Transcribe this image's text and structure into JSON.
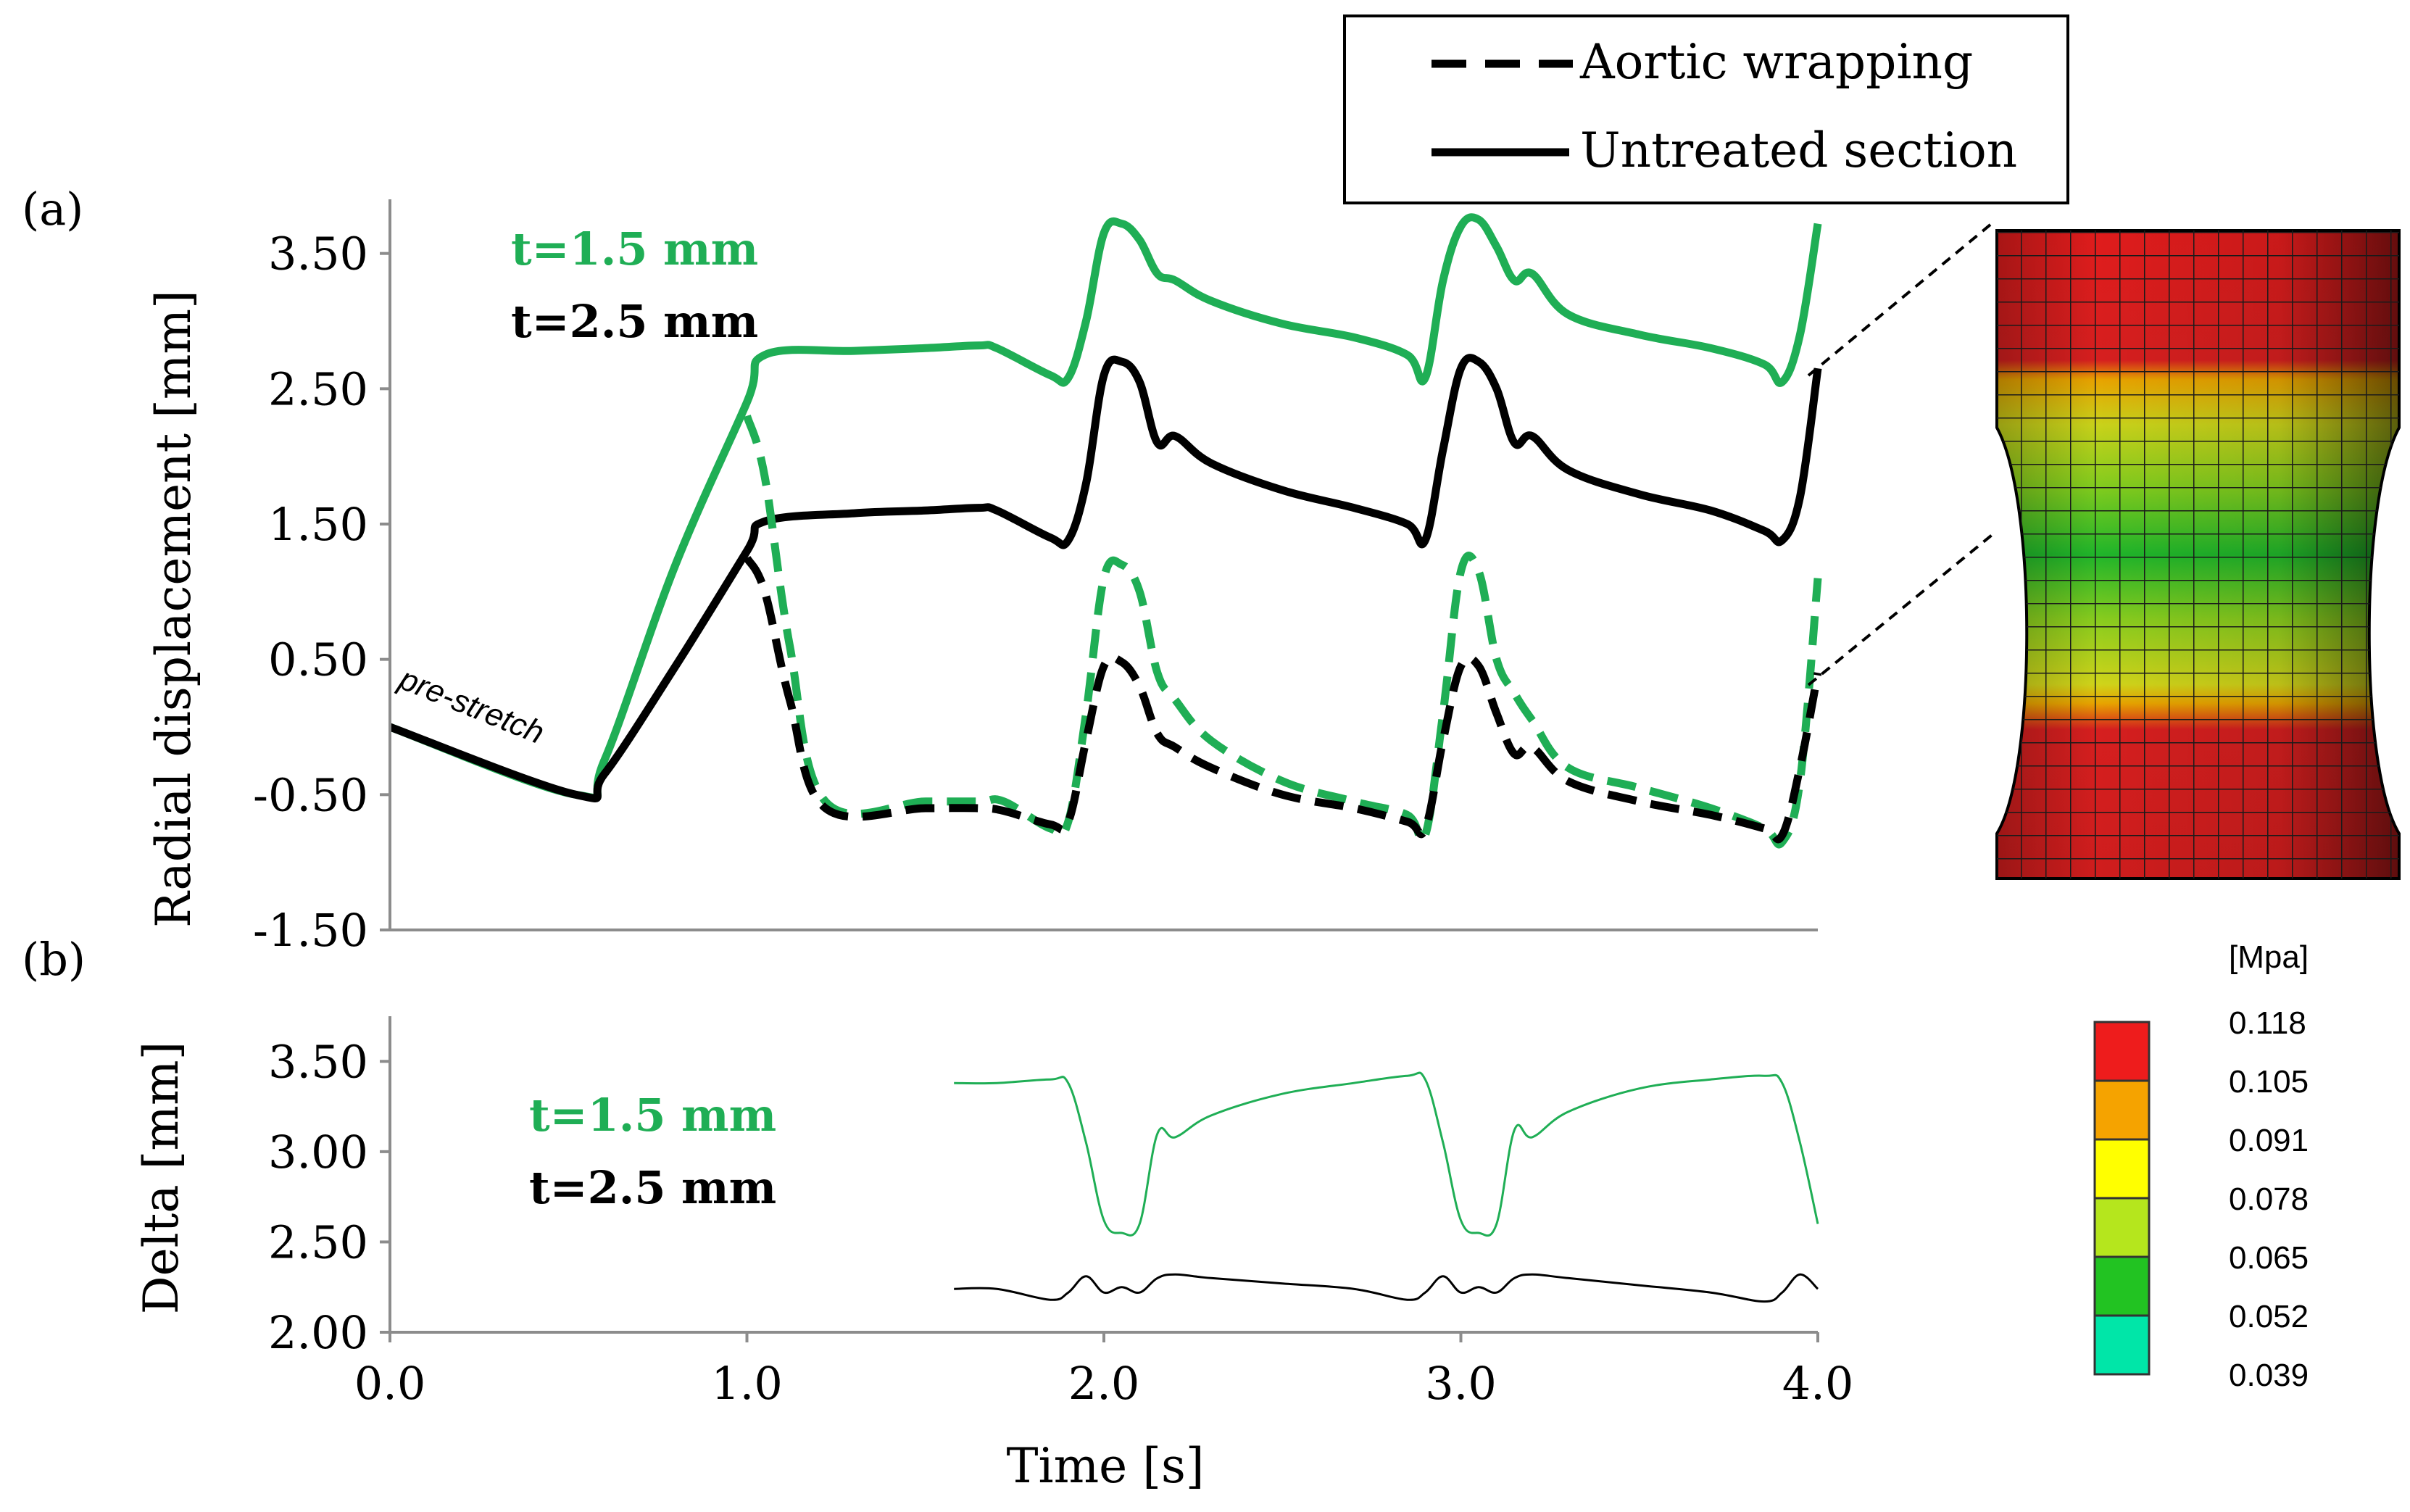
{
  "colors": {
    "green": "#1fae55",
    "black": "#000000",
    "axis": "#8c8c8c"
  },
  "legend": {
    "dashed_label": "Aortic wrapping",
    "solid_label": "Untreated section"
  },
  "panel_a": {
    "label": "(a)",
    "annotation": "pre-stretch",
    "thickness_labels": [
      "t=1.5 mm",
      "t=2.5 mm"
    ]
  },
  "panel_b": {
    "label": "(b)",
    "thickness_labels": [
      "t=1.5 mm",
      "t=2.5 mm"
    ]
  },
  "colorbar": {
    "unit": "[Mpa]",
    "ticks": [
      "0.118",
      "0.105",
      "0.091",
      "0.078",
      "0.065",
      "0.052",
      "0.039"
    ],
    "colors": [
      "#ee1c1c",
      "#f5a300",
      "#ffff00",
      "#b5e61d",
      "#22c322",
      "#00e6a8"
    ]
  },
  "chart_data": [
    {
      "type": "line",
      "title": "",
      "xlabel": "",
      "ylabel": "Radial displacement [mm]",
      "xlim": [
        0,
        4
      ],
      "ylim": [
        -1.5,
        3.9
      ],
      "yticks": [
        "3.50",
        "2.50",
        "1.50",
        "0.50",
        "-0.50",
        "-1.50"
      ],
      "series": [
        {
          "name": "Untreated section t=1.5 mm",
          "style": "solid",
          "color": "green",
          "x": [
            0,
            0.52,
            0.6,
            0.8,
            1.0,
            1.05,
            1.3,
            1.5,
            1.65,
            1.7,
            1.85,
            1.9,
            1.95,
            2.0,
            2.05,
            2.1,
            2.15,
            2.2,
            2.3,
            2.5,
            2.7,
            2.85,
            2.9,
            2.95,
            3.0,
            3.05,
            3.1,
            3.15,
            3.2,
            3.3,
            3.5,
            3.7,
            3.85,
            3.9,
            3.95,
            4.0
          ],
          "y": [
            0.0,
            -0.5,
            -0.25,
            1.2,
            2.4,
            2.75,
            2.78,
            2.8,
            2.82,
            2.8,
            2.6,
            2.58,
            3.0,
            3.65,
            3.72,
            3.6,
            3.35,
            3.3,
            3.15,
            2.98,
            2.88,
            2.75,
            2.58,
            3.3,
            3.7,
            3.75,
            3.55,
            3.3,
            3.35,
            3.05,
            2.9,
            2.8,
            2.68,
            2.55,
            2.9,
            3.72
          ]
        },
        {
          "name": "Untreated section t=2.5 mm",
          "style": "solid",
          "color": "black",
          "x": [
            0,
            0.52,
            0.6,
            0.8,
            1.0,
            1.05,
            1.3,
            1.5,
            1.65,
            1.7,
            1.85,
            1.9,
            1.95,
            2.0,
            2.05,
            2.1,
            2.15,
            2.2,
            2.3,
            2.5,
            2.7,
            2.85,
            2.9,
            2.95,
            3.0,
            3.05,
            3.1,
            3.15,
            3.2,
            3.3,
            3.5,
            3.7,
            3.85,
            3.9,
            3.95,
            4.0
          ],
          "y": [
            0.0,
            -0.5,
            -0.35,
            0.45,
            1.3,
            1.52,
            1.58,
            1.6,
            1.62,
            1.6,
            1.4,
            1.38,
            1.8,
            2.6,
            2.7,
            2.55,
            2.1,
            2.15,
            1.95,
            1.75,
            1.62,
            1.5,
            1.38,
            2.05,
            2.65,
            2.7,
            2.5,
            2.1,
            2.15,
            1.9,
            1.72,
            1.6,
            1.45,
            1.38,
            1.7,
            2.65
          ]
        },
        {
          "name": "Aortic wrapping t=1.5 mm",
          "style": "dashed",
          "color": "green",
          "x": [
            1.0,
            1.05,
            1.12,
            1.22,
            1.5,
            1.65,
            1.72,
            1.85,
            1.9,
            1.95,
            2.0,
            2.05,
            2.1,
            2.15,
            2.2,
            2.3,
            2.5,
            2.7,
            2.85,
            2.9,
            2.95,
            3.0,
            3.05,
            3.1,
            3.15,
            3.2,
            3.3,
            3.5,
            3.7,
            3.85,
            3.9,
            3.95,
            4.0
          ],
          "y": [
            2.3,
            1.85,
            0.6,
            -0.55,
            -0.55,
            -0.55,
            -0.55,
            -0.75,
            -0.7,
            0.1,
            1.1,
            1.2,
            1.0,
            0.4,
            0.2,
            -0.1,
            -0.4,
            -0.55,
            -0.65,
            -0.8,
            0.1,
            1.15,
            1.15,
            0.5,
            0.25,
            0.05,
            -0.3,
            -0.45,
            -0.6,
            -0.75,
            -0.85,
            -0.4,
            1.1
          ]
        },
        {
          "name": "Aortic wrapping t=2.5 mm",
          "style": "dashed",
          "color": "black",
          "x": [
            1.0,
            1.05,
            1.12,
            1.22,
            1.5,
            1.65,
            1.72,
            1.85,
            1.9,
            1.95,
            2.0,
            2.05,
            2.1,
            2.15,
            2.2,
            2.3,
            2.5,
            2.7,
            2.85,
            2.9,
            2.95,
            3.0,
            3.05,
            3.1,
            3.15,
            3.2,
            3.3,
            3.5,
            3.7,
            3.85,
            3.9,
            3.95,
            4.0
          ],
          "y": [
            1.25,
            1.0,
            0.2,
            -0.6,
            -0.6,
            -0.6,
            -0.62,
            -0.72,
            -0.7,
            -0.1,
            0.45,
            0.48,
            0.3,
            -0.05,
            -0.15,
            -0.3,
            -0.5,
            -0.6,
            -0.7,
            -0.75,
            -0.1,
            0.45,
            0.45,
            0.1,
            -0.2,
            -0.15,
            -0.4,
            -0.55,
            -0.65,
            -0.75,
            -0.8,
            -0.3,
            0.4
          ]
        }
      ]
    },
    {
      "type": "line",
      "title": "",
      "xlabel": "Time [s]",
      "ylabel": "Delta [mm]",
      "xlim": [
        0,
        4
      ],
      "ylim": [
        2.0,
        3.75
      ],
      "xticks": [
        "0.0",
        "1.0",
        "2.0",
        "3.0",
        "4.0"
      ],
      "yticks": [
        "3.50",
        "3.00",
        "2.50",
        "2.00"
      ],
      "series": [
        {
          "name": "Delta t=1.5 mm",
          "color": "green",
          "x": [
            1.58,
            1.7,
            1.85,
            1.9,
            1.95,
            2.0,
            2.05,
            2.1,
            2.15,
            2.2,
            2.3,
            2.5,
            2.7,
            2.85,
            2.9,
            2.95,
            3.0,
            3.05,
            3.1,
            3.15,
            3.2,
            3.3,
            3.5,
            3.7,
            3.85,
            3.9,
            3.95,
            4.0
          ],
          "y": [
            3.38,
            3.38,
            3.4,
            3.38,
            3.05,
            2.62,
            2.55,
            2.6,
            3.1,
            3.08,
            3.2,
            3.32,
            3.38,
            3.42,
            3.4,
            3.05,
            2.62,
            2.55,
            2.6,
            3.12,
            3.08,
            3.22,
            3.35,
            3.4,
            3.42,
            3.38,
            3.05,
            2.6
          ]
        },
        {
          "name": "Delta t=2.5 mm",
          "color": "black",
          "x": [
            1.58,
            1.7,
            1.85,
            1.9,
            1.95,
            2.0,
            2.05,
            2.1,
            2.15,
            2.2,
            2.3,
            2.5,
            2.7,
            2.85,
            2.9,
            2.95,
            3.0,
            3.05,
            3.1,
            3.15,
            3.2,
            3.3,
            3.5,
            3.7,
            3.85,
            3.9,
            3.95,
            4.0
          ],
          "y": [
            2.24,
            2.24,
            2.18,
            2.22,
            2.31,
            2.22,
            2.25,
            2.22,
            2.3,
            2.32,
            2.3,
            2.27,
            2.24,
            2.18,
            2.22,
            2.31,
            2.22,
            2.25,
            2.22,
            2.3,
            2.32,
            2.3,
            2.26,
            2.22,
            2.17,
            2.22,
            2.32,
            2.24
          ]
        }
      ]
    }
  ]
}
